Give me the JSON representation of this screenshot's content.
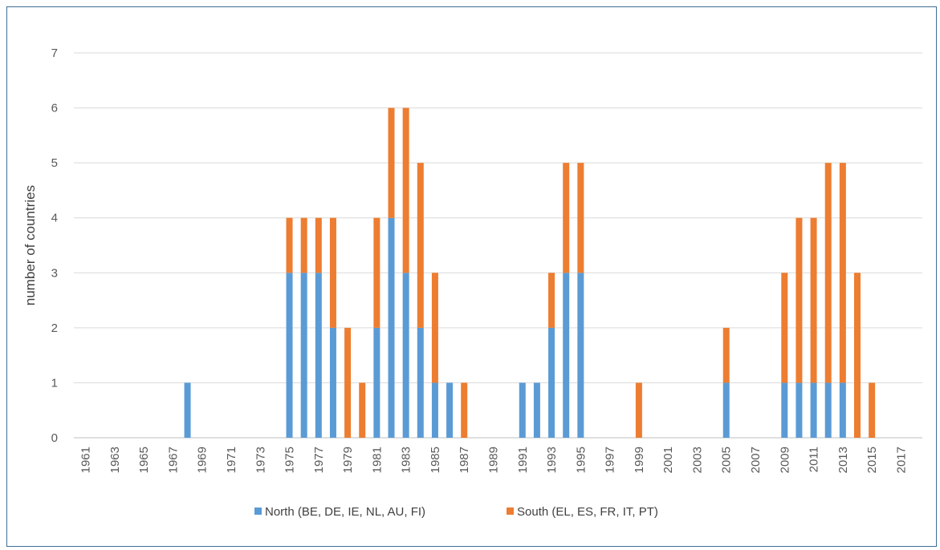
{
  "chart_data": {
    "type": "bar",
    "stacked": true,
    "title": "",
    "xlabel": "",
    "ylabel": "number of countries",
    "ylim": [
      0,
      7
    ],
    "yticks": [
      0,
      1,
      2,
      3,
      4,
      5,
      6,
      7
    ],
    "grid": true,
    "legend_position": "bottom",
    "categories": [
      1961,
      1962,
      1963,
      1964,
      1965,
      1966,
      1967,
      1968,
      1969,
      1970,
      1971,
      1972,
      1973,
      1974,
      1975,
      1976,
      1977,
      1978,
      1979,
      1980,
      1981,
      1982,
      1983,
      1984,
      1985,
      1986,
      1987,
      1988,
      1989,
      1990,
      1991,
      1992,
      1993,
      1994,
      1995,
      1996,
      1997,
      1998,
      1999,
      2000,
      2001,
      2002,
      2003,
      2004,
      2005,
      2006,
      2007,
      2008,
      2009,
      2010,
      2011,
      2012,
      2013,
      2014,
      2015,
      2016,
      2017,
      2018
    ],
    "tick_labels": [
      "1961",
      "1963",
      "1965",
      "1967",
      "1969",
      "1971",
      "1973",
      "1975",
      "1977",
      "1979",
      "1981",
      "1983",
      "1985",
      "1987",
      "1989",
      "1991",
      "1993",
      "1995",
      "1997",
      "1999",
      "2001",
      "2003",
      "2005",
      "2007",
      "2009",
      "2011",
      "2013",
      "2015",
      "2017"
    ],
    "series": [
      {
        "name": "North (BE, DE, IE, NL, AU, FI)",
        "color": "#5b9bd5",
        "values": [
          0,
          0,
          0,
          0,
          0,
          0,
          0,
          1,
          0,
          0,
          0,
          0,
          0,
          0,
          3,
          3,
          3,
          2,
          0,
          0,
          2,
          4,
          3,
          2,
          1,
          1,
          0,
          0,
          0,
          0,
          1,
          1,
          2,
          3,
          3,
          0,
          0,
          0,
          0,
          0,
          0,
          0,
          0,
          0,
          1,
          0,
          0,
          0,
          1,
          1,
          1,
          1,
          1,
          0,
          0,
          0,
          0,
          0
        ]
      },
      {
        "name": "South (EL, ES, FR, IT, PT)",
        "color": "#ed7d31",
        "values": [
          0,
          0,
          0,
          0,
          0,
          0,
          0,
          0,
          0,
          0,
          0,
          0,
          0,
          0,
          1,
          1,
          1,
          2,
          2,
          1,
          2,
          2,
          3,
          3,
          2,
          0,
          1,
          0,
          0,
          0,
          0,
          0,
          1,
          2,
          2,
          0,
          0,
          0,
          1,
          0,
          0,
          0,
          0,
          0,
          1,
          0,
          0,
          0,
          2,
          3,
          3,
          4,
          4,
          3,
          1,
          0,
          0,
          0
        ]
      }
    ]
  }
}
